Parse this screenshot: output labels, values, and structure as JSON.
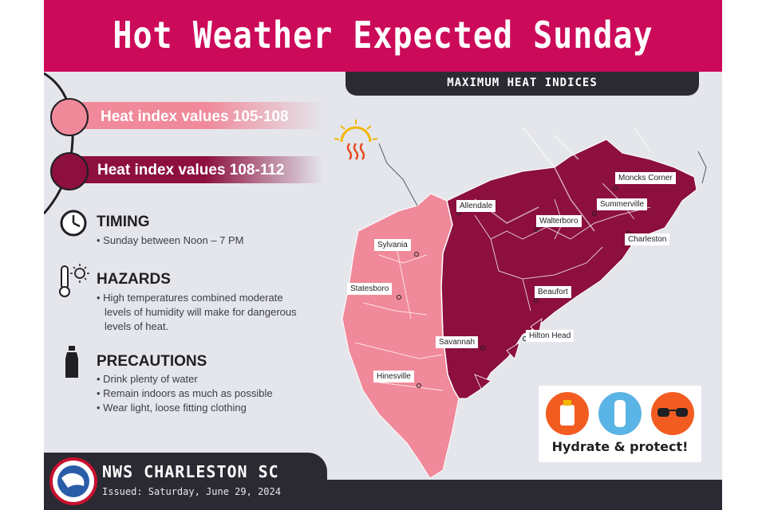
{
  "header": {
    "title": "Hot Weather Expected Sunday",
    "subtitle": "MAXIMUM HEAT INDICES"
  },
  "legend": [
    {
      "label": "Heat index values 105-108",
      "color": "#f0899a"
    },
    {
      "label": "Heat index values 108-112",
      "color": "#8c0f3e"
    }
  ],
  "sections": {
    "timing": {
      "title": "TIMING",
      "icon": "clock-icon",
      "bullets": [
        "Sunday between Noon – 7 PM"
      ]
    },
    "hazards": {
      "title": "HAZARDS",
      "icon": "thermometer-sun-icon",
      "bullets": [
        "High temperatures combined moderate levels of humidity will make for dangerous levels of heat."
      ],
      "lines": [
        "High temperatures combined moderate",
        "levels of humidity will make for dangerous",
        "levels of heat."
      ]
    },
    "precautions": {
      "title": "PRECAUTIONS",
      "icon": "water-bottle-icon",
      "bullets": [
        "Drink plenty of water",
        "Remain indoors as much as possible",
        "Wear light, loose fitting clothing"
      ]
    }
  },
  "map": {
    "cities": [
      {
        "name": "Moncks Corner",
        "zone": "108-112"
      },
      {
        "name": "Allendale",
        "zone": "108-112"
      },
      {
        "name": "Summerville",
        "zone": "108-112"
      },
      {
        "name": "Walterboro",
        "zone": "108-112"
      },
      {
        "name": "Charleston",
        "zone": "108-112"
      },
      {
        "name": "Sylvania",
        "zone": "105-108"
      },
      {
        "name": "Statesboro",
        "zone": "105-108"
      },
      {
        "name": "Beaufort",
        "zone": "108-112"
      },
      {
        "name": "Hilton Head",
        "zone": "108-112"
      },
      {
        "name": "Savannah",
        "zone": "108-112"
      },
      {
        "name": "Hinesville",
        "zone": "105-108"
      }
    ],
    "icon": "sun-heat-icon"
  },
  "hydrate": {
    "label": "Hydrate & protect!",
    "icons": [
      "sunscreen-icon",
      "water-bottle-icon",
      "sunglasses-icon"
    ]
  },
  "footer": {
    "office": "NWS CHARLESTON SC",
    "issued": "Issued: Saturday, June 29, 2024",
    "logo": "nws-logo-icon"
  },
  "colors": {
    "banner": "#cc0a5a",
    "dark": "#2b2a33",
    "zone_low": "#f0899a",
    "zone_high": "#8c0f3e"
  }
}
